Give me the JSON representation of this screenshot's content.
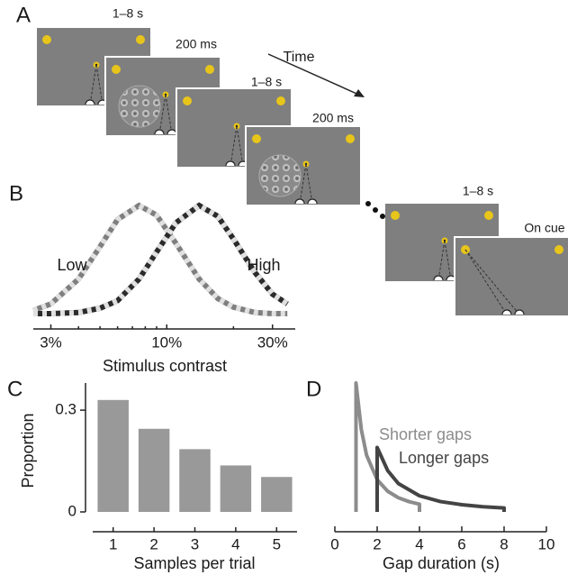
{
  "panel_labels": [
    "A",
    "B",
    "C",
    "D"
  ],
  "panel_a": {
    "time_label": "Time",
    "durations": [
      "1–8 s",
      "200 ms",
      "1–8 s",
      "200 ms",
      "1–8 s",
      "On cue"
    ]
  },
  "chart_data": [
    {
      "type": "line",
      "xlabel": "Stimulus contrast",
      "log_x": true,
      "x": [
        2.5,
        3,
        4,
        5,
        6,
        7.5,
        9,
        11,
        14,
        17,
        20,
        25,
        30,
        35
      ],
      "series": [
        {
          "name": "Low",
          "color": "#7f7f7f",
          "values": [
            0.03,
            0.09,
            0.32,
            0.62,
            0.87,
            1,
            0.91,
            0.65,
            0.32,
            0.14,
            0.06,
            0.01,
            0,
            0
          ]
        },
        {
          "name": "High",
          "color": "#2b2b2b",
          "values": [
            0,
            0,
            0.01,
            0.05,
            0.12,
            0.32,
            0.57,
            0.84,
            1,
            0.9,
            0.69,
            0.38,
            0.18,
            0.09
          ]
        }
      ],
      "xlim": [
        2.5,
        38
      ],
      "ylim": [
        0,
        1
      ],
      "xticks": [
        {
          "value": 3,
          "label": "3%"
        },
        {
          "value": 10,
          "label": "10%"
        },
        {
          "value": 30,
          "label": "30%"
        }
      ]
    },
    {
      "type": "bar",
      "xlabel": "Samples per trial",
      "ylabel": "Proportion",
      "categories": [
        "1",
        "2",
        "3",
        "4",
        "5"
      ],
      "values": [
        0.33,
        0.245,
        0.185,
        0.137,
        0.103
      ],
      "color": "#999999",
      "ylim": [
        0,
        0.38
      ],
      "yticks": [
        0,
        0.3
      ]
    },
    {
      "type": "line",
      "xlabel": "Gap duration (s)",
      "series": [
        {
          "name": "Shorter gaps",
          "color": "#8c8c8c",
          "x": [
            1,
            1,
            1.25,
            1.5,
            2,
            2.5,
            3,
            3.5,
            4,
            4
          ],
          "values": [
            0,
            1,
            0.64,
            0.44,
            0.25,
            0.16,
            0.11,
            0.08,
            0.06,
            0
          ]
        },
        {
          "name": "Longer gaps",
          "color": "#444444",
          "x": [
            2,
            2,
            2.5,
            3,
            4,
            5,
            6,
            7,
            8,
            8
          ],
          "values": [
            0,
            0.5,
            0.32,
            0.22,
            0.125,
            0.08,
            0.056,
            0.04,
            0.031,
            0
          ]
        }
      ],
      "xlim": [
        0,
        10
      ],
      "ylim": [
        0,
        1
      ],
      "xticks": [
        0,
        2,
        4,
        6,
        8,
        10
      ]
    }
  ]
}
